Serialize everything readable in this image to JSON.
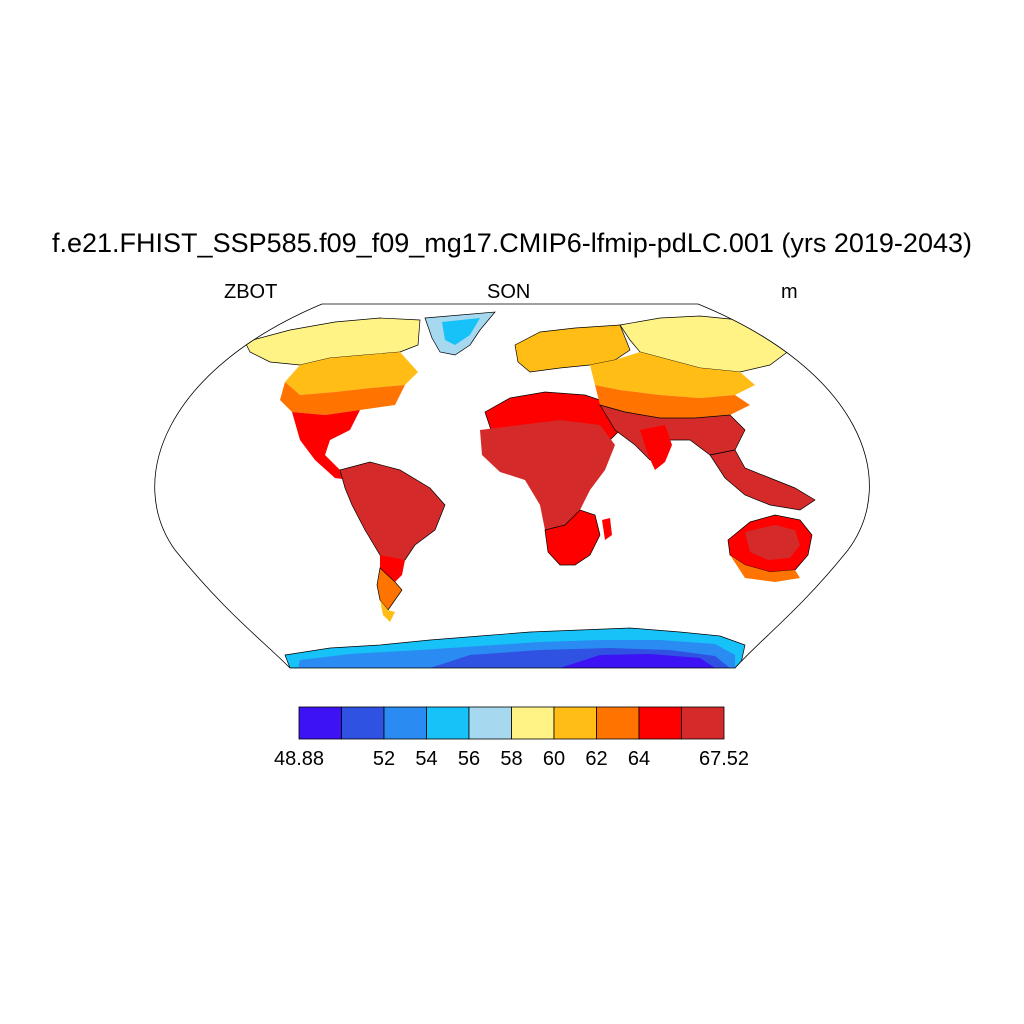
{
  "title": "f.e21.FHIST_SSP585.f09_f09_mg17.CMIP6-lfmip-pdLC.001 (yrs 2019-2043)",
  "left_label": "ZBOT",
  "center_label": "SON",
  "right_label": "m",
  "colorbar": {
    "colors": [
      "#3d12f5",
      "#2f52e3",
      "#2a8bf2",
      "#16c2f7",
      "#a6d8f0",
      "#fef384",
      "#ffbd16",
      "#ff7400",
      "#ff0000",
      "#d42a2a"
    ],
    "labels": [
      "48.88",
      "52",
      "54",
      "56",
      "58",
      "60",
      "62",
      "64",
      "67.52"
    ],
    "label_slots": [
      0,
      2,
      3,
      4,
      5,
      6,
      7,
      8,
      10
    ]
  },
  "land_colors": {
    "outline": "#000000",
    "ocean": "#ffffff"
  }
}
